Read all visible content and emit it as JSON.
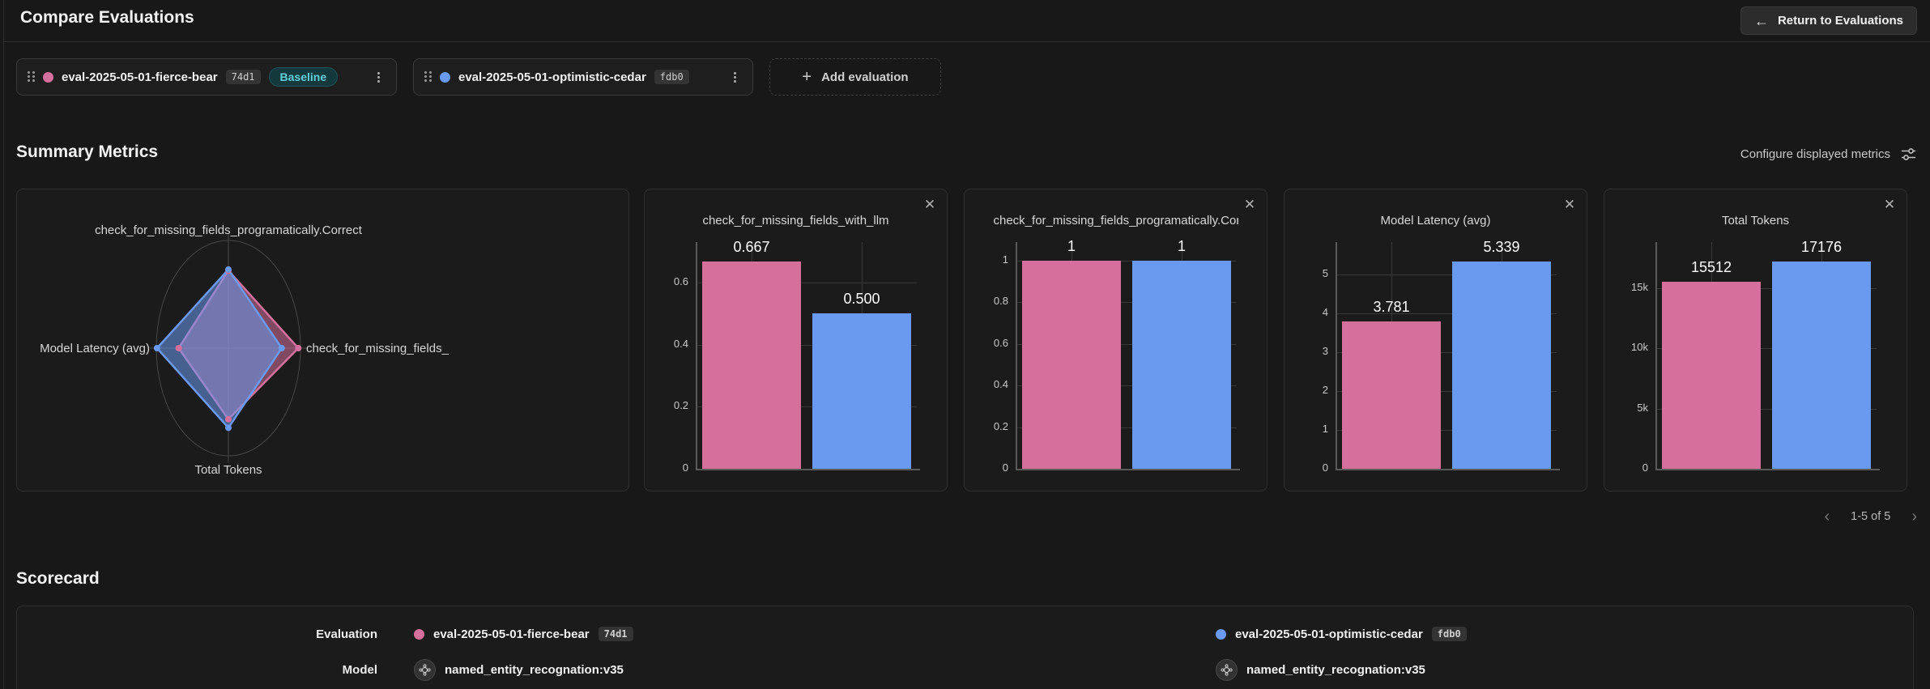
{
  "header": {
    "title": "Compare Evaluations",
    "return_label": "Return to Evaluations"
  },
  "evaluations": [
    {
      "name": "eval-2025-05-01-fierce-bear",
      "short_id": "74d1",
      "badge": "Baseline",
      "color": "#d5709d"
    },
    {
      "name": "eval-2025-05-01-optimistic-cedar",
      "short_id": "fdb0",
      "color": "#6a9af0"
    }
  ],
  "toolbar": {
    "add_evaluation_label": "Add evaluation"
  },
  "summary": {
    "title": "Summary Metrics",
    "configure_label": "Configure displayed metrics",
    "pagination": {
      "range": "1-5 of 5",
      "prev": "‹",
      "next": "›"
    }
  },
  "scorecard": {
    "title": "Scorecard",
    "row_labels": [
      "Evaluation",
      "Model"
    ],
    "models": [
      "named_entity_recognation:v35",
      "named_entity_recognation:v35"
    ]
  },
  "theme": {
    "series_colors": [
      "#d5709d",
      "#6a9af0"
    ],
    "baseline_badge_color": "#62cfd8",
    "background": "#181818"
  },
  "chart_data": [
    {
      "type": "radar",
      "axes": [
        "check_for_missing_fields_programatically.Correct",
        "check_for_missing_fields_",
        "Total Tokens",
        "Model Latency (avg)"
      ],
      "series": [
        {
          "name": "eval-2025-05-01-fierce-bear",
          "color": "#d5709d",
          "values": [
            1,
            0.667,
            15512,
            3.781
          ],
          "normalized": [
            0.72,
            0.97,
            0.66,
            0.69
          ]
        },
        {
          "name": "eval-2025-05-01-optimistic-cedar",
          "color": "#6a9af0",
          "values": [
            1,
            0.5,
            17176,
            5.339
          ],
          "normalized": [
            0.73,
            0.74,
            0.74,
            0.99
          ]
        }
      ]
    },
    {
      "type": "bar",
      "title": "check_for_missing_fields_with_llm",
      "categories": [
        "eval-2025-05-01-fierce-bear",
        "eval-2025-05-01-optimistic-cedar"
      ],
      "values": [
        0.667,
        0.5
      ],
      "bar_labels": [
        "0.667",
        "0.500"
      ],
      "yticks": [
        {
          "v": 0,
          "label": "0"
        },
        {
          "v": 0.2,
          "label": "0.2"
        },
        {
          "v": 0.4,
          "label": "0.4"
        },
        {
          "v": 0.6,
          "label": "0.6"
        }
      ],
      "ymax": 0.73
    },
    {
      "type": "bar",
      "title": "check_for_missing_fields_programatically.Correct",
      "categories": [
        "eval-2025-05-01-fierce-bear",
        "eval-2025-05-01-optimistic-cedar"
      ],
      "values": [
        1,
        1
      ],
      "bar_labels": [
        "1",
        "1"
      ],
      "yticks": [
        {
          "v": 0,
          "label": "0"
        },
        {
          "v": 0.2,
          "label": "0.2"
        },
        {
          "v": 0.4,
          "label": "0.4"
        },
        {
          "v": 0.6,
          "label": "0.6"
        },
        {
          "v": 0.8,
          "label": "0.8"
        },
        {
          "v": 1,
          "label": "1"
        }
      ],
      "ymax": 1.09
    },
    {
      "type": "bar",
      "title": "Model Latency (avg)",
      "categories": [
        "eval-2025-05-01-fierce-bear",
        "eval-2025-05-01-optimistic-cedar"
      ],
      "values": [
        3.781,
        5.339
      ],
      "bar_labels": [
        "3.781",
        "5.339"
      ],
      "yticks": [
        {
          "v": 0,
          "label": "0"
        },
        {
          "v": 1,
          "label": "1"
        },
        {
          "v": 2,
          "label": "2"
        },
        {
          "v": 3,
          "label": "3"
        },
        {
          "v": 4,
          "label": "4"
        },
        {
          "v": 5,
          "label": "5"
        }
      ],
      "ymax": 5.83
    },
    {
      "type": "bar",
      "title": "Total Tokens",
      "categories": [
        "eval-2025-05-01-fierce-bear",
        "eval-2025-05-01-optimistic-cedar"
      ],
      "values": [
        15512,
        17176
      ],
      "bar_labels": [
        "15512",
        "17176"
      ],
      "yticks": [
        {
          "v": 0,
          "label": "0"
        },
        {
          "v": 5000,
          "label": "5k"
        },
        {
          "v": 10000,
          "label": "10k"
        },
        {
          "v": 15000,
          "label": "15k"
        }
      ],
      "ymax": 18800
    }
  ]
}
